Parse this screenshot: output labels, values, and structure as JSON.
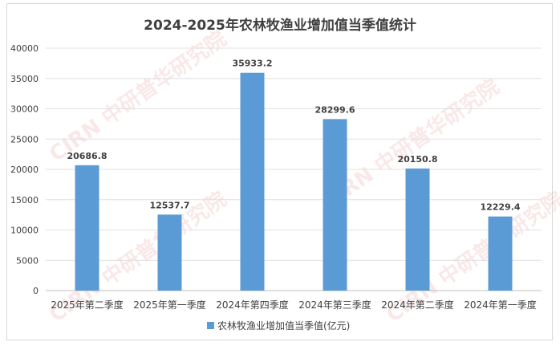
{
  "chart_data": {
    "type": "bar",
    "title": "2024-2025年农林牧渔业增加值当季值统计",
    "categories": [
      "2025年第二季度",
      "2025年第一季度",
      "2024年第四季度",
      "2024年第三季度",
      "2024年第二季度",
      "2024年第一季度"
    ],
    "series": [
      {
        "name": "农林牧渔业增加值当季值(亿元)",
        "values": [
          20686.8,
          12537.7,
          35933.2,
          28299.6,
          20150.8,
          12229.4
        ]
      }
    ],
    "data_labels": [
      "20686.8",
      "12537.7",
      "35933.2",
      "28299.6",
      "20150.8",
      "12229.4"
    ],
    "ylim": [
      0,
      40000
    ],
    "yticks": [
      "0",
      "5000",
      "10000",
      "15000",
      "20000",
      "25000",
      "30000",
      "35000",
      "40000"
    ],
    "grid": true,
    "legend_position": "bottom",
    "bar_color": "#5b9bd5"
  },
  "watermark": "中研普华研究院 www.ChinaIRN.com"
}
